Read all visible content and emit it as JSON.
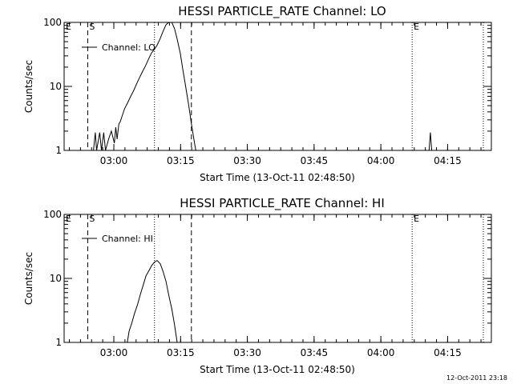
{
  "chart_data": [
    {
      "type": "line",
      "title": "HESSI PARTICLE_RATE Channel: LO",
      "xlabel": "Start Time (13-Oct-11 02:48:50)",
      "ylabel": "Counts/sec",
      "yscale": "log",
      "ylim": [
        1,
        100
      ],
      "xlim_minutes": [
        0,
        96
      ],
      "x_tick_labels": [
        "03:00",
        "03:15",
        "03:30",
        "03:45",
        "04:00",
        "04:15"
      ],
      "x_tick_minutes": [
        11.17,
        26.17,
        41.17,
        56.17,
        71.17,
        86.17
      ],
      "y_tick_labels": [
        "1",
        "10",
        "100"
      ],
      "y_tick_values": [
        1,
        10,
        100
      ],
      "legend": {
        "label": "Channel: LO",
        "position": "top-left"
      },
      "markers": [
        {
          "label": "E",
          "minute": 0.0,
          "style": "dotted"
        },
        {
          "label": "S",
          "minute": 5.3,
          "style": "dashed"
        },
        {
          "label": "",
          "minute": 20.3,
          "style": "dotted"
        },
        {
          "label": "",
          "minute": 28.6,
          "style": "dashed"
        },
        {
          "label": "E",
          "minute": 78.2,
          "style": "dotted"
        },
        {
          "label": "",
          "minute": 94.2,
          "style": "dotted"
        }
      ],
      "series": [
        {
          "values": [
            [
              6.6,
              1
            ],
            [
              7.0,
              1.9
            ],
            [
              7.3,
              1
            ],
            [
              8.0,
              1.9
            ],
            [
              8.4,
              1
            ],
            [
              8.9,
              1.9
            ],
            [
              9.3,
              1
            ],
            [
              10.0,
              1.5
            ],
            [
              10.6,
              2.0
            ],
            [
              11.3,
              1.3
            ],
            [
              11.6,
              2.3
            ],
            [
              11.9,
              1.5
            ],
            [
              12.3,
              2.6
            ],
            [
              12.6,
              2.8
            ],
            [
              13.0,
              3.4
            ],
            [
              13.6,
              4.5
            ],
            [
              14.3,
              5.6
            ],
            [
              15.0,
              7.1
            ],
            [
              15.6,
              8.5
            ],
            [
              16.3,
              11
            ],
            [
              16.9,
              13.5
            ],
            [
              17.6,
              17
            ],
            [
              18.3,
              21
            ],
            [
              18.9,
              26
            ],
            [
              19.6,
              33
            ],
            [
              20.3,
              38
            ],
            [
              20.9,
              44
            ],
            [
              21.6,
              56
            ],
            [
              22.2,
              72
            ],
            [
              22.9,
              92
            ],
            [
              23.5,
              100
            ],
            [
              24.2,
              100
            ],
            [
              24.8,
              80
            ],
            [
              25.4,
              55
            ],
            [
              26.1,
              33
            ],
            [
              26.7,
              18
            ],
            [
              27.3,
              10
            ],
            [
              28.0,
              5
            ],
            [
              28.6,
              2.6
            ],
            [
              29.3,
              1.3
            ],
            [
              29.6,
              1
            ]
          ]
        },
        {
          "values": [
            [
              82.0,
              1
            ],
            [
              82.3,
              1.9
            ],
            [
              82.6,
              1
            ]
          ]
        }
      ]
    },
    {
      "type": "line",
      "title": "HESSI PARTICLE_RATE Channel: HI",
      "xlabel": "Start Time (13-Oct-11 02:48:50)",
      "ylabel": "Counts/sec",
      "yscale": "log",
      "ylim": [
        1,
        100
      ],
      "xlim_minutes": [
        0,
        96
      ],
      "x_tick_labels": [
        "03:00",
        "03:15",
        "03:30",
        "03:45",
        "04:00",
        "04:15"
      ],
      "x_tick_minutes": [
        11.17,
        26.17,
        41.17,
        56.17,
        71.17,
        86.17
      ],
      "y_tick_labels": [
        "1",
        "10",
        "100"
      ],
      "y_tick_values": [
        1,
        10,
        100
      ],
      "legend": {
        "label": "Channel: HI",
        "position": "top-left"
      },
      "markers": [
        {
          "label": "E",
          "minute": 0.0,
          "style": "dotted"
        },
        {
          "label": "S",
          "minute": 5.3,
          "style": "dashed"
        },
        {
          "label": "",
          "minute": 20.3,
          "style": "dotted"
        },
        {
          "label": "",
          "minute": 28.6,
          "style": "dashed"
        },
        {
          "label": "E",
          "minute": 78.2,
          "style": "dotted"
        },
        {
          "label": "",
          "minute": 94.2,
          "style": "dotted"
        }
      ],
      "series": [
        {
          "values": [
            [
              14.2,
              1
            ],
            [
              14.6,
              1.5
            ],
            [
              15.2,
              2.0
            ],
            [
              15.8,
              2.8
            ],
            [
              16.5,
              3.9
            ],
            [
              17.1,
              5.5
            ],
            [
              17.8,
              8.0
            ],
            [
              18.4,
              11
            ],
            [
              19.0,
              13
            ],
            [
              19.7,
              16
            ],
            [
              20.3,
              18
            ],
            [
              20.9,
              19
            ],
            [
              21.6,
              17
            ],
            [
              22.2,
              13
            ],
            [
              22.9,
              9
            ],
            [
              23.5,
              5.5
            ],
            [
              24.2,
              3.3
            ],
            [
              24.8,
              1.9
            ],
            [
              25.4,
              1
            ]
          ]
        }
      ]
    }
  ],
  "footer": {
    "timestamp": "12-Oct-2011 23:18"
  }
}
